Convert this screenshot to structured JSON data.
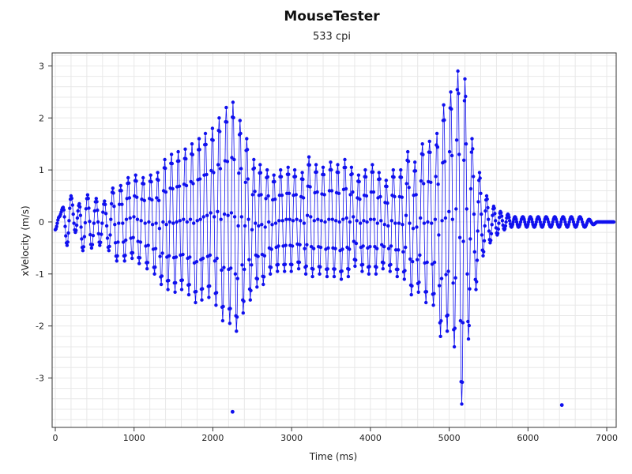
{
  "chart_data": {
    "type": "line",
    "title": "MouseTester",
    "subtitle": "533 cpi",
    "xlabel": "Time (ms)",
    "ylabel": "xVelocity (m/s)",
    "xlim": [
      -40,
      7120
    ],
    "ylim": [
      -3.95,
      3.25
    ],
    "xticks": [
      0,
      1000,
      2000,
      3000,
      4000,
      5000,
      6000,
      7000
    ],
    "yticks": [
      -3,
      -2,
      -1,
      0,
      1,
      2,
      3
    ],
    "grid": true,
    "colors": {
      "series": "#1010ee",
      "grid": "#e8e8e8",
      "axis": "#333333"
    },
    "series": [
      {
        "markers": true,
        "x": [
          0,
          50,
          100,
          150,
          200,
          255,
          305,
          350,
          410,
          460,
          520,
          565,
          625,
          680,
          730,
          780,
          830,
          880,
          925,
          975,
          1020,
          1065,
          1115,
          1165,
          1210,
          1260,
          1300,
          1345,
          1390,
          1430,
          1475,
          1520,
          1560,
          1605,
          1650,
          1695,
          1735,
          1780,
          1825,
          1860,
          1905,
          1950,
          1995,
          2040,
          2080,
          2125,
          2170,
          2215,
          2255,
          2300,
          2345,
          2385,
          2430,
          2475,
          2520,
          2560,
          2600,
          2640,
          2690,
          2730,
          2775,
          2820,
          2860,
          2910,
          2955,
          2995,
          3040,
          3090,
          3135,
          3180,
          3220,
          3265,
          3310,
          3355,
          3400,
          3450,
          3495,
          3540,
          3585,
          3630,
          3675,
          3720,
          3760,
          3805,
          3850,
          3895,
          3935,
          3980,
          4025,
          4070,
          4110,
          4160,
          4200,
          4250,
          4290,
          4340,
          4385,
          4430,
          4475,
          4520,
          4565,
          4610,
          4660,
          4705,
          4750,
          4800,
          4845,
          4890,
          4930,
          4975,
          5020,
          5065,
          5110,
          5160,
          5200,
          5245,
          5290,
          5340,
          5385,
          5430,
          5475,
          5520,
          5565,
          5610,
          5650,
          5700,
          5745,
          5790,
          5835,
          5880,
          5935,
          5985,
          6030,
          6080,
          6130,
          6180,
          6230,
          6290,
          6340,
          6395,
          6445,
          6500,
          6550,
          6605,
          6660,
          6720,
          6775,
          6830,
          6880,
          6935,
          6990,
          7040,
          7090
        ],
        "values": [
          -0.15,
          0.1,
          0.28,
          -0.45,
          0.5,
          -0.2,
          0.35,
          -0.55,
          0.52,
          -0.5,
          0.45,
          -0.45,
          0.4,
          -0.55,
          0.65,
          -0.75,
          0.7,
          -0.75,
          0.85,
          -0.7,
          0.9,
          -0.8,
          0.85,
          -0.9,
          0.9,
          -1.0,
          0.95,
          -1.2,
          1.2,
          -1.3,
          1.3,
          -1.35,
          1.35,
          -1.3,
          1.4,
          -1.4,
          1.5,
          -1.55,
          1.6,
          -1.5,
          1.7,
          -1.45,
          1.8,
          -1.6,
          2.0,
          -1.9,
          2.2,
          -1.95,
          2.3,
          -2.1,
          1.95,
          -1.75,
          1.6,
          -1.5,
          1.2,
          -1.25,
          1.1,
          -1.2,
          1.0,
          -1.0,
          0.9,
          -0.95,
          1.0,
          -0.95,
          1.05,
          -0.95,
          1.0,
          -0.9,
          0.95,
          -1.0,
          1.25,
          -1.05,
          1.1,
          -1.0,
          1.05,
          -1.05,
          1.15,
          -1.05,
          1.1,
          -1.1,
          1.2,
          -1.05,
          1.05,
          -0.85,
          0.9,
          -0.95,
          1.0,
          -1.0,
          1.1,
          -1.0,
          0.95,
          -0.9,
          0.8,
          -0.95,
          1.0,
          -1.05,
          1.0,
          -1.1,
          1.35,
          -1.4,
          1.15,
          -1.35,
          1.5,
          -1.55,
          1.55,
          -1.6,
          1.7,
          -2.2,
          2.25,
          -2.1,
          2.5,
          -2.4,
          2.9,
          -3.5,
          2.75,
          -2.25,
          1.6,
          -1.3,
          0.95,
          -0.65,
          0.5,
          -0.4,
          0.3,
          -0.25,
          0.2,
          -0.15,
          0.15,
          -0.1,
          0.1,
          -0.1,
          0.1,
          -0.1,
          0.1,
          -0.1,
          0.1,
          -0.1,
          0.1,
          -0.1,
          0.1,
          -0.1,
          0.1,
          -0.1,
          0.1,
          -0.1,
          0.1,
          -0.1,
          0.05,
          -0.05,
          0.0,
          0.0,
          0.0,
          0.0,
          0.0
        ]
      }
    ],
    "outliers": [
      {
        "x": 2250,
        "y": -3.65
      },
      {
        "x": 6430,
        "y": -3.52
      }
    ]
  }
}
